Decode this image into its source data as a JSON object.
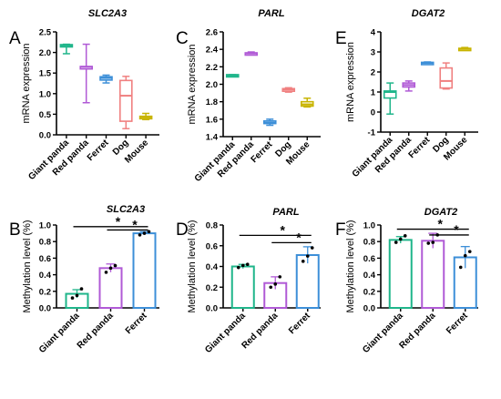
{
  "chart_data": [
    {
      "panel": "A",
      "type": "box",
      "title": "SLC2A3",
      "xlabel": "",
      "ylabel": "mRNA expression",
      "ylim": [
        0,
        2.5
      ],
      "yticks": [
        "0.0",
        "0.5",
        "1.0",
        "1.5",
        "2.0",
        "2.5"
      ],
      "categories": [
        "Giant panda",
        "Red panda",
        "Ferret",
        "Dog",
        "Mouse"
      ],
      "colors": [
        "#1fb58a",
        "#b05ad6",
        "#3d8fd8",
        "#f08080",
        "#c8b400"
      ],
      "boxes": [
        {
          "min": 1.97,
          "q1": 2.16,
          "median": 2.17,
          "q3": 2.19,
          "max": 2.2
        },
        {
          "min": 0.78,
          "q1": 1.6,
          "median": 1.65,
          "q3": 1.66,
          "max": 2.2
        },
        {
          "min": 1.26,
          "q1": 1.33,
          "median": 1.38,
          "q3": 1.41,
          "max": 1.45
        },
        {
          "min": 0.15,
          "q1": 0.33,
          "median": 0.95,
          "q3": 1.32,
          "max": 1.42
        },
        {
          "min": 0.37,
          "q1": 0.39,
          "median": 0.43,
          "q3": 0.45,
          "max": 0.52
        }
      ]
    },
    {
      "panel": "C",
      "type": "box",
      "title": "PARL",
      "xlabel": "",
      "ylabel": "mRNA expression",
      "ylim": [
        1.4,
        2.6
      ],
      "yticks": [
        "1.4",
        "1.6",
        "1.8",
        "2.0",
        "2.2",
        "2.4",
        "2.6"
      ],
      "categories": [
        "Giant panda",
        "Red panda",
        "Ferret",
        "Dog",
        "Mouse"
      ],
      "colors": [
        "#1fb58a",
        "#b05ad6",
        "#3d8fd8",
        "#f08080",
        "#c8b400"
      ],
      "boxes": [
        {
          "min": 2.09,
          "q1": 2.1,
          "median": 2.1,
          "q3": 2.11,
          "max": 2.11
        },
        {
          "min": 2.34,
          "q1": 2.35,
          "median": 2.355,
          "q3": 2.36,
          "max": 2.37
        },
        {
          "min": 1.53,
          "q1": 1.55,
          "median": 1.56,
          "q3": 1.58,
          "max": 1.6
        },
        {
          "min": 1.91,
          "q1": 1.92,
          "median": 1.94,
          "q3": 1.95,
          "max": 1.96
        },
        {
          "min": 1.74,
          "q1": 1.75,
          "median": 1.77,
          "q3": 1.8,
          "max": 1.84
        }
      ]
    },
    {
      "panel": "E",
      "type": "box",
      "title": "DGAT2",
      "xlabel": "",
      "ylabel": "mRNA expression",
      "ylim": [
        -1,
        4
      ],
      "yticks": [
        "-1",
        "0",
        "1",
        "2",
        "3",
        "4"
      ],
      "categories": [
        "Giant panda",
        "Red panda",
        "Ferret",
        "Dog",
        "Mouse"
      ],
      "colors": [
        "#1fb58a",
        "#b05ad6",
        "#3d8fd8",
        "#f08080",
        "#c8b400"
      ],
      "boxes": [
        {
          "min": -0.1,
          "q1": 0.7,
          "median": 1.0,
          "q3": 1.05,
          "max": 1.45
        },
        {
          "min": 1.05,
          "q1": 1.25,
          "median": 1.35,
          "q3": 1.45,
          "max": 1.55
        },
        {
          "min": 2.4,
          "q1": 2.42,
          "median": 2.45,
          "q3": 2.48,
          "max": 2.5
        },
        {
          "min": 1.15,
          "q1": 1.2,
          "median": 1.55,
          "q3": 2.2,
          "max": 2.45
        },
        {
          "min": 3.08,
          "q1": 3.1,
          "median": 3.15,
          "q3": 3.18,
          "max": 3.22
        }
      ]
    },
    {
      "panel": "B",
      "type": "bar",
      "title": "SLC2A3",
      "xlabel": "",
      "ylabel": "Methylation  level  (%)",
      "ylim": [
        0,
        1.0
      ],
      "yticks": [
        "0.0",
        "0.2",
        "0.4",
        "0.6",
        "0.8",
        "1.0"
      ],
      "categories": [
        "Giant panda",
        "Red panda",
        "Ferret"
      ],
      "colors": [
        "#1fb58a",
        "#b05ad6",
        "#3d8fd8"
      ],
      "values": [
        0.17,
        0.48,
        0.9
      ],
      "errors": [
        0.05,
        0.05,
        0.02
      ],
      "points": [
        [
          0.12,
          0.15,
          0.23
        ],
        [
          0.43,
          0.48,
          0.51
        ],
        [
          0.88,
          0.9,
          0.92
        ]
      ],
      "significance": [
        {
          "from": 0,
          "to": 2,
          "y": 0.98,
          "label": "*"
        },
        {
          "from": 1,
          "to": 2,
          "y": 0.94,
          "label": "*"
        }
      ]
    },
    {
      "panel": "D",
      "type": "bar",
      "title": "PARL",
      "xlabel": "",
      "ylabel": "Methylation  level  (%)",
      "ylim": [
        0,
        0.8
      ],
      "yticks": [
        "0.0",
        "0.2",
        "0.4",
        "0.6",
        "0.8"
      ],
      "categories": [
        "Giant panda",
        "Red panda",
        "Ferret"
      ],
      "colors": [
        "#1fb58a",
        "#b05ad6",
        "#3d8fd8"
      ],
      "values": [
        0.4,
        0.24,
        0.51
      ],
      "errors": [
        0.02,
        0.06,
        0.08
      ],
      "points": [
        [
          0.39,
          0.41,
          0.42
        ],
        [
          0.2,
          0.23,
          0.3
        ],
        [
          0.45,
          0.5,
          0.58
        ]
      ],
      "significance": [
        {
          "from": 0,
          "to": 2,
          "y": 0.7,
          "label": "*"
        },
        {
          "from": 1,
          "to": 2,
          "y": 0.63,
          "label": "*"
        }
      ]
    },
    {
      "panel": "F",
      "type": "bar",
      "title": "DGAT2",
      "xlabel": "",
      "ylabel": "Methylation  level  (%)",
      "ylim": [
        0,
        1.0
      ],
      "yticks": [
        "0.0",
        "0.2",
        "0.4",
        "0.6",
        "0.8",
        "1.0"
      ],
      "categories": [
        "Giant panda",
        "Red panda",
        "Ferret"
      ],
      "colors": [
        "#1fb58a",
        "#b05ad6",
        "#3d8fd8"
      ],
      "values": [
        0.82,
        0.81,
        0.61
      ],
      "errors": [
        0.04,
        0.09,
        0.13
      ],
      "points": [
        [
          0.79,
          0.83,
          0.87
        ],
        [
          0.78,
          0.79,
          0.88
        ],
        [
          0.49,
          0.63,
          0.68
        ]
      ],
      "significance": [
        {
          "from": 0,
          "to": 2,
          "y": 0.95,
          "label": "*"
        },
        {
          "from": 1,
          "to": 2,
          "y": 0.88,
          "label": "*"
        }
      ]
    }
  ]
}
